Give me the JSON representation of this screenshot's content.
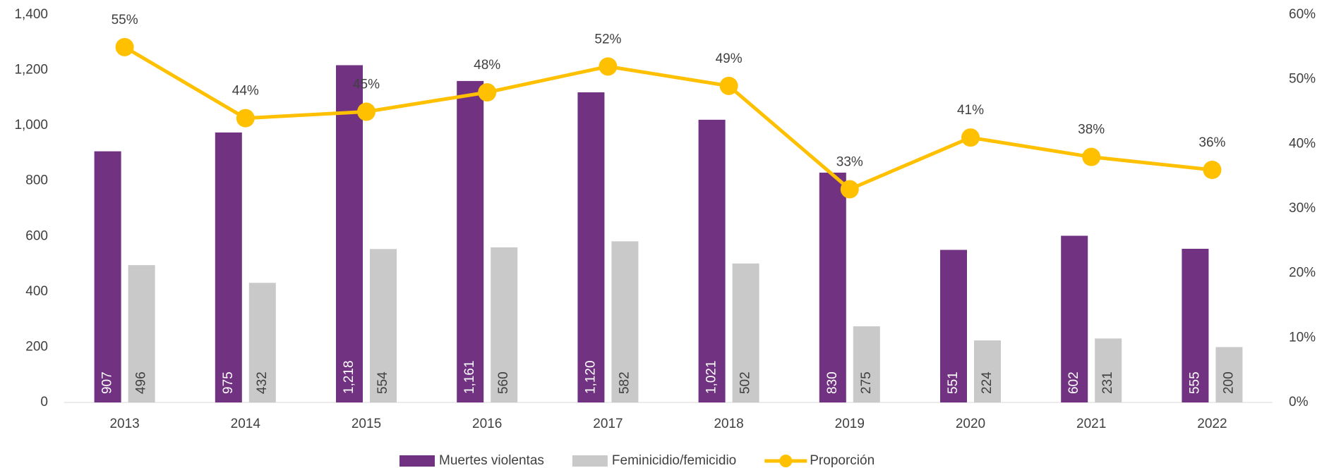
{
  "chart_data": {
    "type": "bar",
    "categories": [
      "2013",
      "2014",
      "2015",
      "2016",
      "2017",
      "2018",
      "2019",
      "2020",
      "2021",
      "2022"
    ],
    "series": [
      {
        "name": "Muertes violentas",
        "color": "#713282",
        "values": [
          907,
          975,
          1218,
          1161,
          1120,
          1021,
          830,
          551,
          602,
          555
        ],
        "value_labels": [
          "907",
          "975",
          "1,218",
          "1,161",
          "1,120",
          "1,021",
          "830",
          "551",
          "602",
          "555"
        ]
      },
      {
        "name": "Feminicidio/femicidio",
        "color": "#C9C9C9",
        "values": [
          496,
          432,
          554,
          560,
          582,
          502,
          275,
          224,
          231,
          200
        ]
      },
      {
        "name": "Proporción",
        "type": "line",
        "axis": "y2",
        "color": "#FFC000",
        "values": [
          55,
          44,
          45,
          48,
          52,
          49,
          33,
          41,
          38,
          36
        ],
        "value_labels": [
          "55%",
          "44%",
          "45%",
          "48%",
          "52%",
          "49%",
          "33%",
          "41%",
          "38%",
          "36%"
        ]
      }
    ],
    "ylim": [
      0,
      1400
    ],
    "yticks": [
      0,
      200,
      400,
      600,
      800,
      {
        "value": 1000,
        "label": "1,000"
      },
      {
        "value": 1200,
        "label": "1,200"
      },
      {
        "value": 1400,
        "label": "1,400"
      }
    ],
    "y2lim": [
      0,
      60
    ],
    "y2ticks": [
      {
        "value": 0,
        "label": "0%"
      },
      {
        "value": 10,
        "label": "10%"
      },
      {
        "value": 20,
        "label": "20%"
      },
      {
        "value": 30,
        "label": "30%"
      },
      {
        "value": 40,
        "label": "40%"
      },
      {
        "value": 50,
        "label": "50%"
      },
      {
        "value": 60,
        "label": "60%"
      }
    ],
    "legend": "bottom"
  }
}
